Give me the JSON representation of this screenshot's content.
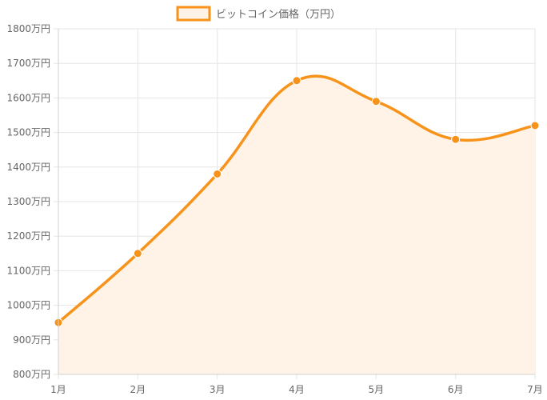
{
  "chart_data": {
    "type": "line",
    "title": "",
    "xlabel": "",
    "ylabel": "",
    "categories": [
      "1月",
      "2月",
      "3月",
      "4月",
      "5月",
      "6月",
      "7月"
    ],
    "series": [
      {
        "name": "ビットコイン価格（万円）",
        "values": [
          950,
          1150,
          1380,
          1650,
          1590,
          1480,
          1520
        ],
        "color": "#f7931a",
        "fill": "#fef3e6"
      }
    ],
    "ylim": [
      800,
      1800
    ],
    "y_tick_step": 100,
    "y_tick_suffix": "万円",
    "legend_position": "top",
    "grid": true,
    "curved": true,
    "area_fill": true
  }
}
